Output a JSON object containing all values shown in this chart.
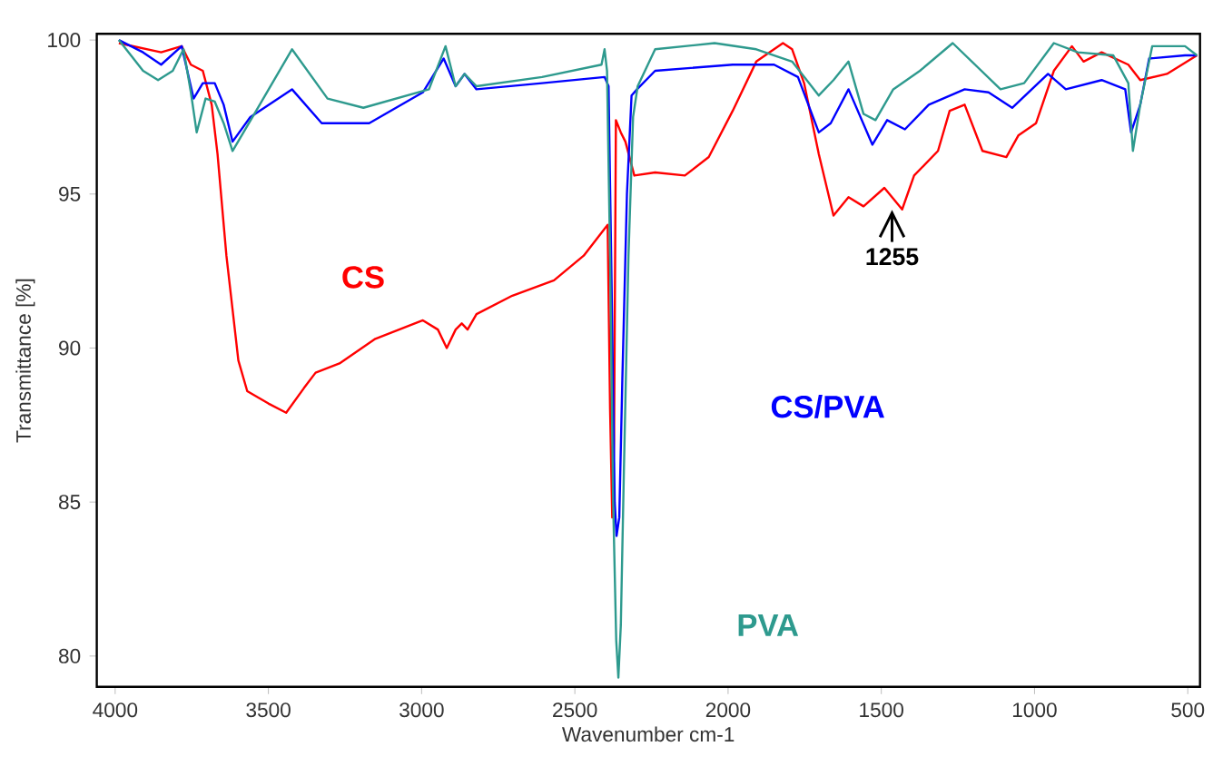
{
  "chart_data": {
    "type": "line",
    "xlabel": "Wavenumber cm-1",
    "ylabel": "Transmittance [%]",
    "xlim": [
      4060,
      460
    ],
    "ylim": [
      79,
      100.2
    ],
    "xticks": [
      4000,
      3500,
      3000,
      2500,
      2000,
      1500,
      1000,
      500
    ],
    "yticks": [
      80,
      85,
      90,
      95,
      100
    ],
    "grid": false,
    "legend": false,
    "marker": "none",
    "line_style": "solid",
    "annotations": [
      {
        "text": "1255",
        "x": 1465,
        "y": 94.7
      }
    ],
    "series": [
      {
        "name": "CS",
        "color": "#ff0000",
        "x": [
          3988,
          3850,
          3783,
          3753,
          3714,
          3685,
          3666,
          3637,
          3598,
          3569,
          3500,
          3442,
          3384,
          3346,
          3268,
          3151,
          2996,
          2947,
          2918,
          2889,
          2869,
          2850,
          2821,
          2704,
          2568,
          2471,
          2432,
          2393,
          2385,
          2378,
          2372,
          2366,
          2350,
          2335,
          2306,
          2238,
          2141,
          2063,
          1985,
          1908,
          1821,
          1791,
          1752,
          1704,
          1656,
          1607,
          1558,
          1490,
          1432,
          1393,
          1315,
          1277,
          1228,
          1170,
          1092,
          1053,
          995,
          937,
          878,
          840,
          781,
          694,
          655,
          568,
          470
        ],
        "values": [
          99.9,
          99.6,
          99.8,
          99.2,
          99.0,
          97.9,
          96.3,
          93.0,
          89.6,
          88.6,
          88.2,
          87.9,
          88.7,
          89.2,
          89.5,
          90.3,
          90.9,
          90.6,
          90.0,
          90.6,
          90.8,
          90.6,
          91.1,
          91.7,
          92.2,
          93.0,
          93.5,
          94.0,
          88.0,
          84.5,
          87.0,
          97.4,
          97.0,
          96.7,
          95.6,
          95.7,
          95.6,
          96.2,
          97.7,
          99.3,
          99.9,
          99.7,
          98.6,
          96.3,
          94.3,
          94.9,
          94.6,
          95.2,
          94.5,
          95.6,
          96.4,
          97.7,
          97.9,
          96.4,
          96.2,
          96.9,
          97.3,
          99.0,
          99.8,
          99.3,
          99.6,
          99.2,
          98.7,
          98.9,
          99.5
        ]
      },
      {
        "name": "CS/PVA",
        "color": "#0000ff",
        "x": [
          3988,
          3909,
          3850,
          3783,
          3744,
          3714,
          3675,
          3646,
          3617,
          3559,
          3423,
          3326,
          3171,
          2996,
          2928,
          2889,
          2860,
          2821,
          2607,
          2403,
          2390,
          2380,
          2370,
          2364,
          2355,
          2345,
          2330,
          2315,
          2297,
          2238,
          1985,
          1850,
          1772,
          1704,
          1665,
          1607,
          1529,
          1481,
          1423,
          1345,
          1228,
          1150,
          1073,
          956,
          898,
          781,
          704,
          685,
          655,
          626,
          509,
          470
        ],
        "values": [
          100,
          99.6,
          99.2,
          99.8,
          98.1,
          98.6,
          98.6,
          97.9,
          96.7,
          97.5,
          98.4,
          97.3,
          97.3,
          98.3,
          99.4,
          98.5,
          98.9,
          98.4,
          98.6,
          98.8,
          98.5,
          92.0,
          85.0,
          83.9,
          84.5,
          89.0,
          95.0,
          98.2,
          98.4,
          99.0,
          99.2,
          99.2,
          98.8,
          97.0,
          97.3,
          98.4,
          96.6,
          97.4,
          97.1,
          97.9,
          98.4,
          98.3,
          97.8,
          98.9,
          98.4,
          98.7,
          98.4,
          97.0,
          97.9,
          99.4,
          99.5,
          99.5
        ]
      },
      {
        "name": "PVA",
        "color": "#2e9a8e",
        "x": [
          3988,
          3909,
          3860,
          3812,
          3777,
          3753,
          3734,
          3705,
          3675,
          3646,
          3617,
          3540,
          3423,
          3307,
          3190,
          2976,
          2922,
          2889,
          2860,
          2821,
          2607,
          2413,
          2403,
          2395,
          2385,
          2375,
          2365,
          2358,
          2350,
          2340,
          2325,
          2310,
          2295,
          2238,
          2044,
          1908,
          1791,
          1704,
          1656,
          1607,
          1558,
          1519,
          1461,
          1374,
          1267,
          1111,
          1034,
          937,
          859,
          743,
          694,
          679,
          655,
          616,
          509,
          470
        ],
        "values": [
          100,
          99.0,
          98.7,
          99.0,
          99.7,
          98.3,
          97.0,
          98.1,
          98.0,
          97.3,
          96.4,
          97.7,
          99.7,
          98.1,
          97.8,
          98.4,
          99.8,
          98.5,
          98.9,
          98.5,
          98.8,
          99.2,
          99.7,
          99.0,
          93.0,
          85.0,
          80.5,
          79.3,
          81.0,
          86.0,
          93.0,
          97.5,
          98.5,
          99.7,
          99.9,
          99.7,
          99.3,
          98.2,
          98.7,
          99.3,
          97.6,
          97.4,
          98.4,
          99.0,
          99.9,
          98.4,
          98.6,
          99.9,
          99.6,
          99.5,
          98.6,
          96.4,
          97.9,
          99.8,
          99.8,
          99.5
        ]
      }
    ]
  }
}
